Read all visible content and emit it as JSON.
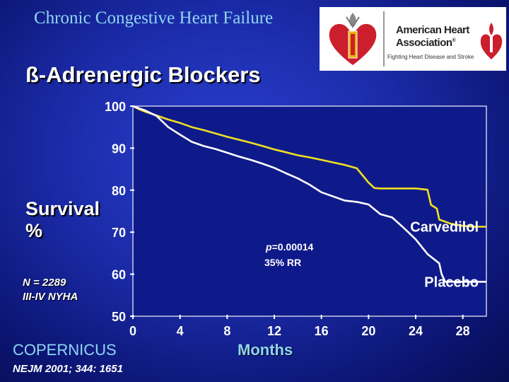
{
  "header": {
    "title": "Chronic Congestive Heart Failure"
  },
  "slide": {
    "title": "ß-Adrenergic Blockers"
  },
  "logo": {
    "icon": "heart-torch-icon",
    "org_line1": "American Heart",
    "org_line2": "Association",
    "org_mark": "®",
    "tagline": "Fighting Heart Disease and Stroke",
    "colors": {
      "red": "#cc1f2d",
      "gold": "#e8b400"
    }
  },
  "left_labels": {
    "ylabel_line1": "Survival",
    "ylabel_line2": "%",
    "n_line1": "N = 2289",
    "n_line2": "III-IV NYHA"
  },
  "footer": {
    "study": "COPERNICUS",
    "citation": "NEJM 2001; 344: 1651"
  },
  "chart_data": {
    "type": "line",
    "xlabel": "Months",
    "xlim": [
      0,
      30
    ],
    "ylim": [
      50,
      100
    ],
    "x_ticks": [
      0,
      4,
      8,
      12,
      16,
      20,
      24,
      28
    ],
    "y_ticks": [
      50,
      60,
      70,
      80,
      90,
      100
    ],
    "grid": false,
    "annotation": {
      "p_prefix": "p",
      "p_value": "=0.00014",
      "rr": "35% RR"
    },
    "series": [
      {
        "name": "Carvedilol",
        "color": "#f0e020",
        "points": [
          [
            0,
            100
          ],
          [
            0.5,
            99.3
          ],
          [
            1,
            98.7
          ],
          [
            2,
            97.8
          ],
          [
            3,
            96.8
          ],
          [
            4,
            96
          ],
          [
            5,
            95
          ],
          [
            6,
            94.3
          ],
          [
            7,
            93.5
          ],
          [
            8,
            92.7
          ],
          [
            9,
            92
          ],
          [
            10,
            91.3
          ],
          [
            11,
            90.5
          ],
          [
            12,
            89.7
          ],
          [
            13,
            89
          ],
          [
            14,
            88.3
          ],
          [
            15,
            87.8
          ],
          [
            16,
            87.2
          ],
          [
            17,
            86.6
          ],
          [
            18,
            86
          ],
          [
            19,
            85.2
          ],
          [
            19.5,
            83.5
          ],
          [
            20,
            81.8
          ],
          [
            20.5,
            80.5
          ],
          [
            21,
            80.4
          ],
          [
            24,
            80.4
          ],
          [
            25,
            80.1
          ],
          [
            25.3,
            76.5
          ],
          [
            25.8,
            75.6
          ],
          [
            26,
            73
          ],
          [
            27,
            72
          ],
          [
            28,
            71.5
          ],
          [
            29,
            71.3
          ],
          [
            30,
            71.3
          ]
        ]
      },
      {
        "name": "Placebo",
        "color": "#ffffff",
        "points": [
          [
            0,
            100
          ],
          [
            0.5,
            99.5
          ],
          [
            1,
            99
          ],
          [
            2,
            97.7
          ],
          [
            3,
            95
          ],
          [
            4,
            93.2
          ],
          [
            5,
            91.5
          ],
          [
            6,
            90.5
          ],
          [
            7,
            89.8
          ],
          [
            8,
            88.9
          ],
          [
            9,
            88
          ],
          [
            10,
            87.2
          ],
          [
            11,
            86.3
          ],
          [
            12,
            85.3
          ],
          [
            13,
            84
          ],
          [
            14,
            82.8
          ],
          [
            15,
            81.3
          ],
          [
            16,
            79.5
          ],
          [
            17,
            78.5
          ],
          [
            18,
            77.5
          ],
          [
            19,
            77.2
          ],
          [
            20,
            76.6
          ],
          [
            21,
            74.3
          ],
          [
            22,
            73.5
          ],
          [
            23,
            71
          ],
          [
            24,
            68.3
          ],
          [
            25,
            64.8
          ],
          [
            26,
            62.6
          ],
          [
            26.2,
            60
          ],
          [
            26.5,
            58.2
          ],
          [
            30,
            58.2
          ]
        ]
      }
    ]
  }
}
